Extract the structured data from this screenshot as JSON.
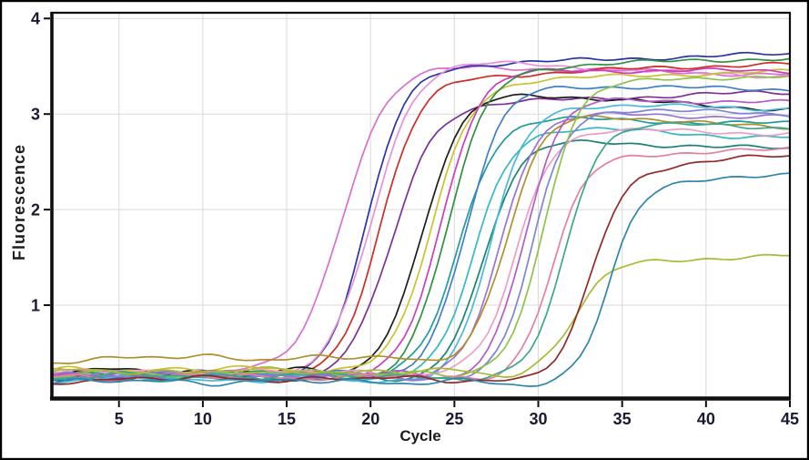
{
  "figure": {
    "background_color": "#ffffff",
    "frame_color": "#000000"
  },
  "chart_data": {
    "type": "line",
    "title": "",
    "xlabel": "Cycle",
    "ylabel": "Fluorescence",
    "xlim": [
      1,
      45
    ],
    "ylim": [
      0.028,
      4.06
    ],
    "xticks": [
      5,
      10,
      15,
      20,
      25,
      30,
      35,
      40,
      45
    ],
    "yticks": [
      1,
      2,
      3,
      4
    ],
    "grid": true,
    "grid_color": "#d9d9d9",
    "plot_bg_color": "#ffffff",
    "axis_color": "#0f0f0f",
    "tick_label_color": "#1a1a33",
    "axis_title_color": "#1c1c1c",
    "legend": "none",
    "description": "Real-time PCR amplification plot: sigmoidal fluorescence growth curves for multiple samples with threshold cycles ranging from ~15 to ~32 and plateau fluorescence between ~1.5 and ~3.6; flat baseline band near 0.2-0.45 before takeoff.",
    "series": [
      {
        "name": "orchid",
        "color": "#d96fce",
        "ct": 15.5,
        "slope": 0.75,
        "plateau": 3.5,
        "final": 3.42,
        "baseline": 0.3
      },
      {
        "name": "navy",
        "color": "#2a34a6",
        "ct": 17.0,
        "slope": 0.85,
        "plateau": 3.52,
        "final": 3.62,
        "baseline": 0.25
      },
      {
        "name": "pink",
        "color": "#ea8fd8",
        "ct": 17.3,
        "slope": 0.8,
        "plateau": 3.55,
        "final": 3.4,
        "baseline": 0.28
      },
      {
        "name": "red",
        "color": "#d02b26",
        "ct": 17.8,
        "slope": 0.82,
        "plateau": 3.4,
        "final": 3.52,
        "baseline": 0.27
      },
      {
        "name": "purple",
        "color": "#7c2f98",
        "ct": 18.5,
        "slope": 0.8,
        "plateau": 3.12,
        "final": 3.22,
        "baseline": 0.26
      },
      {
        "name": "black",
        "color": "#1d1d1d",
        "ct": 20.3,
        "slope": 0.85,
        "plateau": 3.22,
        "final": 3.06,
        "baseline": 0.31
      },
      {
        "name": "olive-yellow",
        "color": "#c9c32e",
        "ct": 20.9,
        "slope": 0.85,
        "plateau": 3.36,
        "final": 3.44,
        "baseline": 0.33
      },
      {
        "name": "magenta",
        "color": "#cb3ec0",
        "ct": 21.4,
        "slope": 0.88,
        "plateau": 3.46,
        "final": 3.45,
        "baseline": 0.29
      },
      {
        "name": "green",
        "color": "#2f9140",
        "ct": 21.9,
        "slope": 0.85,
        "plateau": 3.5,
        "final": 3.58,
        "baseline": 0.27
      },
      {
        "name": "teal",
        "color": "#1f9d9d",
        "ct": 22.4,
        "slope": 0.88,
        "plateau": 2.96,
        "final": 2.9,
        "baseline": 0.25
      },
      {
        "name": "steel-blue",
        "color": "#3f7fc6",
        "ct": 22.9,
        "slope": 0.9,
        "plateau": 3.3,
        "final": 3.26,
        "baseline": 0.28
      },
      {
        "name": "turquoise",
        "color": "#34b7c6",
        "ct": 23.4,
        "slope": 0.9,
        "plateau": 2.86,
        "final": 2.76,
        "baseline": 0.26
      },
      {
        "name": "dark-teal",
        "color": "#1b8376",
        "ct": 23.9,
        "slope": 0.92,
        "plateau": 2.72,
        "final": 2.64,
        "baseline": 0.24
      },
      {
        "name": "cyan",
        "color": "#49b9d8",
        "ct": 24.4,
        "slope": 0.92,
        "plateau": 3.1,
        "final": 3.06,
        "baseline": 0.22
      },
      {
        "name": "lavender",
        "color": "#9a73d6",
        "ct": 24.9,
        "slope": 0.95,
        "plateau": 3.0,
        "final": 2.97,
        "baseline": 0.27
      },
      {
        "name": "goldenrod",
        "color": "#b28f2b",
        "ct": 25.4,
        "slope": 0.95,
        "plateau": 3.0,
        "final": 2.86,
        "baseline": 0.45
      },
      {
        "name": "light-pink",
        "color": "#ef9dc4",
        "ct": 25.9,
        "slope": 0.95,
        "plateau": 2.84,
        "final": 2.8,
        "baseline": 0.3
      },
      {
        "name": "violet",
        "color": "#b55bc8",
        "ct": 26.4,
        "slope": 0.98,
        "plateau": 3.16,
        "final": 3.12,
        "baseline": 0.28
      },
      {
        "name": "periwinkle",
        "color": "#7e85d2",
        "ct": 26.9,
        "slope": 1.0,
        "plateau": 3.06,
        "final": 3.0,
        "baseline": 0.26
      },
      {
        "name": "light-green",
        "color": "#8fc24a",
        "ct": 27.5,
        "slope": 1.0,
        "plateau": 3.34,
        "final": 3.4,
        "baseline": 0.29
      },
      {
        "name": "rose",
        "color": "#e57f9d",
        "ct": 28.1,
        "slope": 1.0,
        "plateau": 2.58,
        "final": 2.62,
        "baseline": 0.25
      },
      {
        "name": "sea-green",
        "color": "#3aa78a",
        "ct": 28.8,
        "slope": 1.0,
        "plateau": 2.9,
        "final": 2.86,
        "baseline": 0.26
      },
      {
        "name": "olive-green",
        "color": "#a9ba35",
        "ct": 29.4,
        "slope": 1.0,
        "plateau": 1.46,
        "final": 1.52,
        "baseline": 0.31
      },
      {
        "name": "maroon",
        "color": "#93282a",
        "ct": 30.4,
        "slope": 1.0,
        "plateau": 2.46,
        "final": 2.56,
        "baseline": 0.23
      },
      {
        "name": "cadet-blue",
        "color": "#2e85ad",
        "ct": 31.4,
        "slope": 1.05,
        "plateau": 2.28,
        "final": 2.38,
        "baseline": 0.2
      }
    ]
  }
}
